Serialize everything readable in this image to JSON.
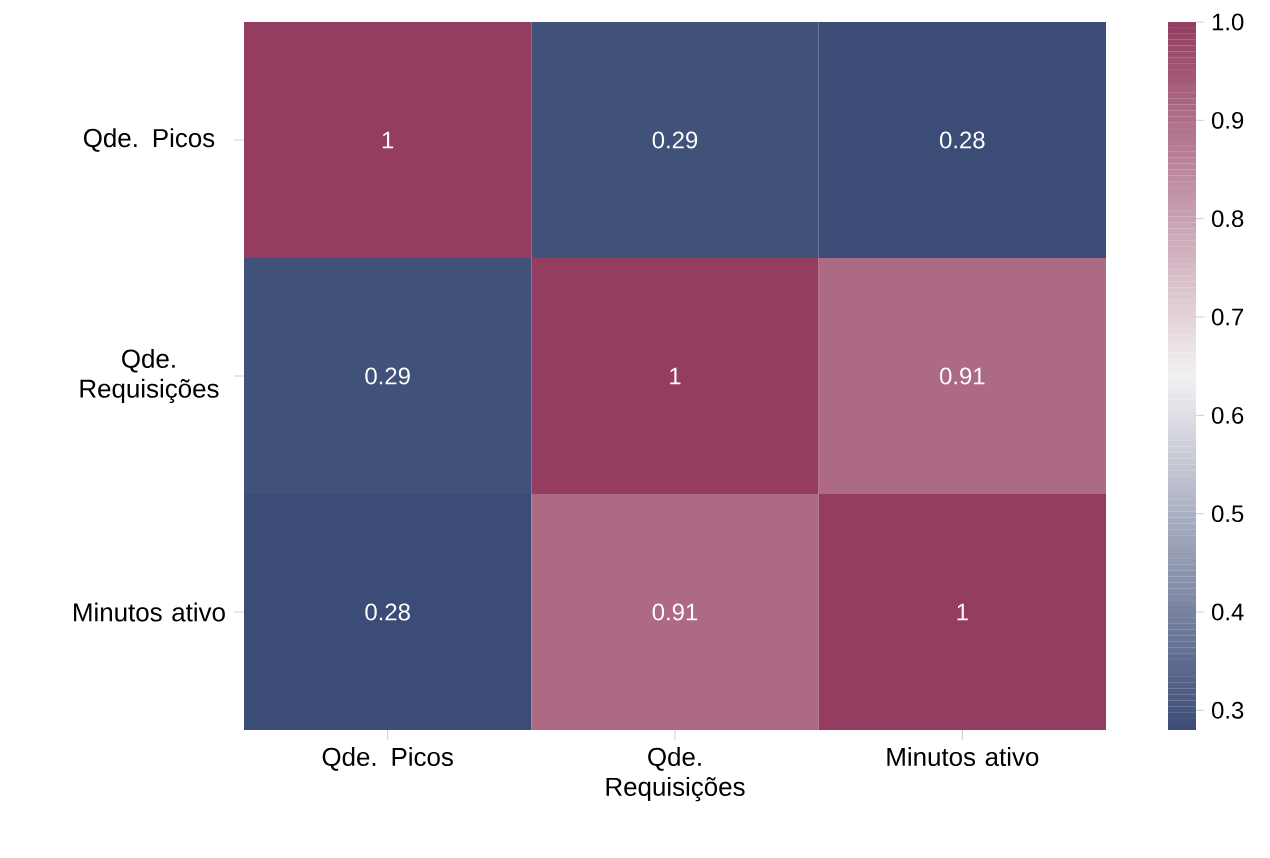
{
  "chart_data": {
    "type": "heatmap",
    "categories": [
      "Qde. Picos",
      "Qde. Requisições",
      "Minutos ativo"
    ],
    "y_categories": [
      "Qde. Picos",
      "Qde. Requisições",
      "Minutos ativo"
    ],
    "cells": [
      [
        1,
        0.29,
        0.28
      ],
      [
        0.29,
        1,
        0.91
      ],
      [
        0.28,
        0.91,
        1
      ]
    ],
    "data_labels": true,
    "clim": [
      0.28,
      1.0
    ],
    "cticks": [
      {
        "value": 0.3,
        "label": "0.3"
      },
      {
        "value": 0.4,
        "label": "0.4"
      },
      {
        "value": 0.5,
        "label": "0.5"
      },
      {
        "value": 0.6,
        "label": "0.6"
      },
      {
        "value": 0.7,
        "label": "0.7"
      },
      {
        "value": 0.8,
        "label": "0.8"
      },
      {
        "value": 0.9,
        "label": "0.9"
      },
      {
        "value": 1.0,
        "label": "1.0"
      }
    ]
  }
}
